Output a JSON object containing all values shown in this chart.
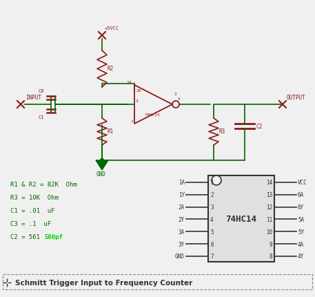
{
  "bg_color": "#f0f0f0",
  "wire_color": "#006600",
  "comp_color": "#8B1A1A",
  "dark_color": "#333333",
  "highlight_color": "#00cc00",
  "title": "Schmitt Trigger Input to Frequency Counter",
  "ic_label": "74HC14",
  "bom": [
    [
      "R1 & R2 = 82K  Ohm",
      false
    ],
    [
      "R3 = 10K  Ohm",
      false
    ],
    [
      "C1 = .01  uF",
      false
    ],
    [
      "C3 = .1  uF",
      false
    ],
    [
      "C2 = 561  ",
      true
    ]
  ],
  "bom_highlight": "560pf",
  "pins_left": [
    "1A",
    "1Y",
    "2A",
    "2Y",
    "3A",
    "3Y",
    "GND"
  ],
  "pins_right": [
    "VCC",
    "6A",
    "6Y",
    "5A",
    "5Y",
    "4A",
    "4Y"
  ],
  "nums_left": [
    "1",
    "2",
    "3",
    "4",
    "5",
    "6",
    "7"
  ],
  "nums_right": [
    "14",
    "13",
    "12",
    "11",
    "10",
    "9",
    "8"
  ]
}
